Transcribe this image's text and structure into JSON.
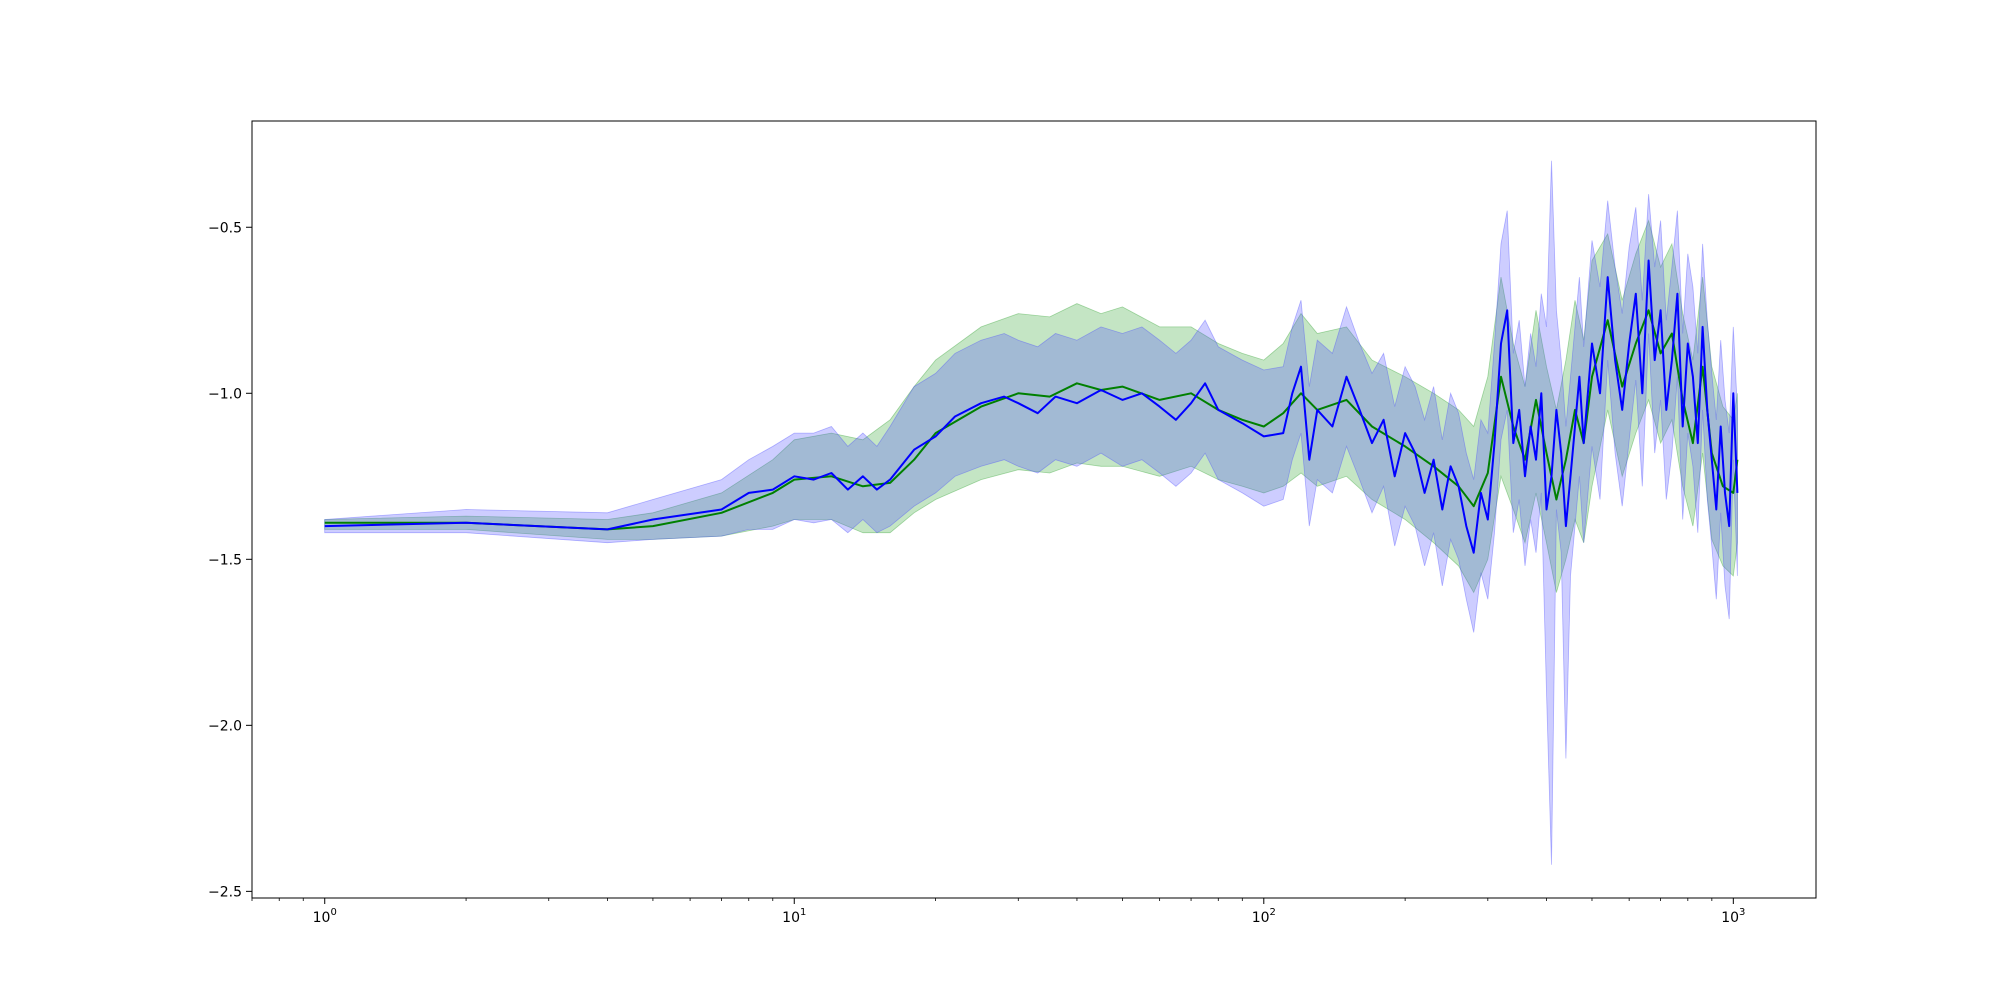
{
  "chart_data": {
    "type": "line",
    "xscale": "log",
    "xlim": [
      0.7,
      1500
    ],
    "ylim": [
      -2.52,
      -0.18
    ],
    "grid": false,
    "legend": "none",
    "x_ticks": [
      {
        "value": 1,
        "base": "10",
        "exp": "0"
      },
      {
        "value": 10,
        "base": "10",
        "exp": "1"
      },
      {
        "value": 100,
        "base": "10",
        "exp": "2"
      },
      {
        "value": 1000,
        "base": "10",
        "exp": "3"
      }
    ],
    "y_ticks": [
      {
        "value": -0.5,
        "label": "−0.5"
      },
      {
        "value": -1.0,
        "label": "−1.0"
      },
      {
        "value": -1.5,
        "label": "−1.5"
      },
      {
        "value": -2.0,
        "label": "−2.0"
      },
      {
        "value": -2.5,
        "label": "−2.5"
      }
    ],
    "series": [
      {
        "color": "#008000",
        "band_color": "#2ca02c",
        "x": [
          1,
          2,
          4,
          5,
          7,
          9,
          10,
          12,
          14,
          16,
          18,
          20,
          25,
          30,
          35,
          40,
          45,
          50,
          60,
          70,
          80,
          90,
          100,
          110,
          120,
          130,
          150,
          170,
          200,
          230,
          260,
          280,
          300,
          320,
          340,
          360,
          380,
          400,
          420,
          440,
          460,
          480,
          500,
          540,
          580,
          620,
          660,
          700,
          740,
          780,
          820,
          860,
          900,
          950,
          1000,
          1020
        ],
        "values": [
          -1.39,
          -1.39,
          -1.41,
          -1.4,
          -1.36,
          -1.3,
          -1.26,
          -1.25,
          -1.28,
          -1.27,
          -1.2,
          -1.12,
          -1.04,
          -1.0,
          -1.01,
          -0.97,
          -0.99,
          -0.98,
          -1.02,
          -1.0,
          -1.05,
          -1.08,
          -1.1,
          -1.06,
          -1.0,
          -1.05,
          -1.02,
          -1.1,
          -1.16,
          -1.22,
          -1.28,
          -1.34,
          -1.24,
          -0.95,
          -1.1,
          -1.2,
          -1.02,
          -1.18,
          -1.32,
          -1.2,
          -1.05,
          -1.15,
          -0.95,
          -0.78,
          -0.98,
          -0.85,
          -0.75,
          -0.88,
          -0.82,
          -1.02,
          -1.15,
          -0.92,
          -1.18,
          -1.28,
          -1.3,
          -1.2
        ],
        "upper": [
          -1.38,
          -1.37,
          -1.38,
          -1.36,
          -1.3,
          -1.2,
          -1.14,
          -1.12,
          -1.14,
          -1.08,
          -0.98,
          -0.9,
          -0.8,
          -0.76,
          -0.77,
          -0.73,
          -0.76,
          -0.74,
          -0.8,
          -0.8,
          -0.85,
          -0.88,
          -0.9,
          -0.85,
          -0.76,
          -0.82,
          -0.8,
          -0.9,
          -0.95,
          -1.0,
          -1.05,
          -1.1,
          -0.95,
          -0.65,
          -0.85,
          -0.98,
          -0.75,
          -0.92,
          -1.05,
          -0.9,
          -0.72,
          -0.84,
          -0.6,
          -0.52,
          -0.72,
          -0.58,
          -0.48,
          -0.62,
          -0.55,
          -0.76,
          -0.9,
          -0.65,
          -0.92,
          -1.04,
          -1.08,
          -1.0
        ],
        "lower": [
          -1.41,
          -1.41,
          -1.44,
          -1.44,
          -1.43,
          -1.4,
          -1.38,
          -1.38,
          -1.42,
          -1.42,
          -1.36,
          -1.32,
          -1.26,
          -1.23,
          -1.24,
          -1.21,
          -1.22,
          -1.22,
          -1.25,
          -1.22,
          -1.26,
          -1.28,
          -1.3,
          -1.28,
          -1.24,
          -1.28,
          -1.25,
          -1.32,
          -1.38,
          -1.45,
          -1.52,
          -1.6,
          -1.5,
          -1.25,
          -1.35,
          -1.45,
          -1.3,
          -1.45,
          -1.6,
          -1.5,
          -1.38,
          -1.45,
          -1.28,
          -1.05,
          -1.25,
          -1.12,
          -1.02,
          -1.15,
          -1.08,
          -1.28,
          -1.4,
          -1.18,
          -1.44,
          -1.52,
          -1.55,
          -1.45
        ]
      },
      {
        "color": "#0000ff",
        "band_color": "#4c4cff",
        "x": [
          1,
          2,
          4,
          5,
          7,
          8,
          9,
          10,
          11,
          12,
          13,
          14,
          15,
          16,
          18,
          20,
          22,
          25,
          28,
          30,
          33,
          36,
          40,
          45,
          50,
          55,
          60,
          65,
          70,
          75,
          80,
          90,
          100,
          110,
          115,
          120,
          125,
          130,
          140,
          150,
          160,
          170,
          180,
          190,
          200,
          210,
          220,
          230,
          240,
          250,
          260,
          270,
          280,
          290,
          300,
          310,
          320,
          330,
          340,
          350,
          360,
          370,
          380,
          390,
          400,
          410,
          420,
          430,
          440,
          450,
          460,
          470,
          480,
          500,
          520,
          540,
          560,
          580,
          600,
          620,
          640,
          660,
          680,
          700,
          720,
          740,
          760,
          780,
          800,
          820,
          840,
          860,
          880,
          900,
          920,
          940,
          960,
          980,
          1000,
          1020
        ],
        "values": [
          -1.4,
          -1.39,
          -1.41,
          -1.38,
          -1.35,
          -1.3,
          -1.29,
          -1.25,
          -1.26,
          -1.24,
          -1.29,
          -1.25,
          -1.29,
          -1.26,
          -1.17,
          -1.13,
          -1.07,
          -1.03,
          -1.01,
          -1.03,
          -1.06,
          -1.01,
          -1.03,
          -0.99,
          -1.02,
          -1.0,
          -1.04,
          -1.08,
          -1.03,
          -0.97,
          -1.05,
          -1.09,
          -1.13,
          -1.12,
          -1.0,
          -0.92,
          -1.2,
          -1.05,
          -1.1,
          -0.95,
          -1.05,
          -1.15,
          -1.08,
          -1.25,
          -1.12,
          -1.18,
          -1.3,
          -1.2,
          -1.35,
          -1.22,
          -1.28,
          -1.4,
          -1.48,
          -1.3,
          -1.38,
          -1.15,
          -0.85,
          -0.75,
          -1.15,
          -1.05,
          -1.25,
          -1.1,
          -1.2,
          -1.0,
          -1.35,
          -1.25,
          -1.05,
          -1.18,
          -1.4,
          -1.25,
          -1.1,
          -0.95,
          -1.15,
          -0.85,
          -1.0,
          -0.65,
          -0.9,
          -1.05,
          -0.85,
          -0.7,
          -1.0,
          -0.6,
          -0.9,
          -0.75,
          -1.05,
          -0.9,
          -0.7,
          -1.1,
          -0.85,
          -0.95,
          -1.15,
          -0.8,
          -1.05,
          -1.2,
          -1.35,
          -1.1,
          -1.3,
          -1.4,
          -1.0,
          -1.3
        ],
        "upper": [
          -1.38,
          -1.35,
          -1.36,
          -1.32,
          -1.26,
          -1.2,
          -1.16,
          -1.12,
          -1.12,
          -1.1,
          -1.16,
          -1.12,
          -1.16,
          -1.1,
          -0.98,
          -0.94,
          -0.88,
          -0.84,
          -0.82,
          -0.84,
          -0.86,
          -0.82,
          -0.84,
          -0.8,
          -0.82,
          -0.8,
          -0.84,
          -0.88,
          -0.84,
          -0.78,
          -0.86,
          -0.9,
          -0.93,
          -0.92,
          -0.8,
          -0.72,
          -0.98,
          -0.84,
          -0.88,
          -0.74,
          -0.85,
          -0.94,
          -0.88,
          -1.04,
          -0.92,
          -0.98,
          -1.08,
          -0.98,
          -1.14,
          -1.0,
          -1.06,
          -1.18,
          -1.26,
          -1.08,
          -1.12,
          -0.85,
          -0.55,
          -0.45,
          -0.88,
          -0.78,
          -0.98,
          -0.82,
          -0.92,
          -0.7,
          -0.8,
          -0.3,
          -0.75,
          -0.9,
          -1.1,
          -0.95,
          -0.8,
          -0.65,
          -0.86,
          -0.54,
          -0.68,
          -0.42,
          -0.62,
          -0.76,
          -0.56,
          -0.44,
          -0.72,
          -0.4,
          -0.62,
          -0.48,
          -0.78,
          -0.62,
          -0.45,
          -0.82,
          -0.58,
          -0.68,
          -0.88,
          -0.55,
          -0.78,
          -0.94,
          -1.08,
          -0.84,
          -1.02,
          -1.12,
          -0.8,
          -1.05
        ],
        "lower": [
          -1.42,
          -1.42,
          -1.45,
          -1.44,
          -1.43,
          -1.41,
          -1.41,
          -1.38,
          -1.39,
          -1.38,
          -1.42,
          -1.38,
          -1.42,
          -1.4,
          -1.34,
          -1.3,
          -1.25,
          -1.22,
          -1.2,
          -1.22,
          -1.24,
          -1.2,
          -1.22,
          -1.18,
          -1.22,
          -1.2,
          -1.24,
          -1.28,
          -1.24,
          -1.18,
          -1.26,
          -1.3,
          -1.34,
          -1.32,
          -1.2,
          -1.12,
          -1.4,
          -1.26,
          -1.3,
          -1.16,
          -1.26,
          -1.36,
          -1.28,
          -1.46,
          -1.34,
          -1.4,
          -1.52,
          -1.42,
          -1.58,
          -1.44,
          -1.5,
          -1.62,
          -1.72,
          -1.54,
          -1.62,
          -1.42,
          -1.14,
          -1.05,
          -1.42,
          -1.32,
          -1.52,
          -1.38,
          -1.48,
          -1.3,
          -1.9,
          -2.42,
          -1.35,
          -1.48,
          -2.1,
          -1.55,
          -1.4,
          -1.25,
          -1.45,
          -1.16,
          -1.32,
          -0.9,
          -1.18,
          -1.34,
          -1.14,
          -0.96,
          -1.28,
          -0.82,
          -1.18,
          -1.02,
          -1.32,
          -1.18,
          -0.95,
          -1.38,
          -1.12,
          -1.22,
          -1.42,
          -1.05,
          -1.32,
          -1.46,
          -1.62,
          -1.36,
          -1.58,
          -1.68,
          -1.2,
          -1.55
        ]
      }
    ]
  }
}
